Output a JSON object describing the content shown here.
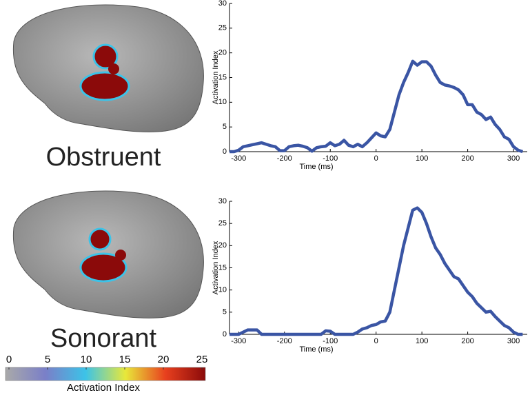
{
  "chart_data": [
    {
      "type": "line",
      "xlabel": "Time (ms)",
      "ylabel": "Activation Index",
      "x": [
        -320,
        -310,
        -300,
        -290,
        -280,
        -270,
        -260,
        -250,
        -240,
        -230,
        -220,
        -210,
        -200,
        -190,
        -180,
        -170,
        -160,
        -150,
        -140,
        -130,
        -120,
        -110,
        -100,
        -90,
        -80,
        -70,
        -60,
        -50,
        -40,
        -30,
        -20,
        -10,
        0,
        10,
        20,
        30,
        40,
        50,
        60,
        70,
        80,
        90,
        100,
        110,
        120,
        130,
        140,
        150,
        160,
        170,
        180,
        190,
        200,
        210,
        220,
        230,
        240,
        250,
        260,
        270,
        280,
        290,
        300,
        310,
        320
      ],
      "series": [
        {
          "name": null,
          "color": "#3a55a4",
          "values": [
            0,
            0,
            0.3,
            1,
            1.2,
            1.4,
            1.6,
            1.8,
            1.5,
            1.2,
            1,
            0.2,
            0.2,
            1,
            1.2,
            1.3,
            1.1,
            0.8,
            0.1,
            0.8,
            1,
            1.1,
            1.8,
            1.2,
            1.5,
            2.3,
            1.3,
            1,
            1.5,
            1,
            1.8,
            2.8,
            3.8,
            3.2,
            3,
            4.5,
            8,
            11.5,
            14,
            16,
            18.3,
            17.5,
            18.2,
            18.2,
            17.3,
            15.5,
            14,
            13.5,
            13.3,
            13,
            12.5,
            11.5,
            9.5,
            9.5,
            8,
            7.5,
            6.5,
            7,
            5.5,
            4.5,
            3,
            2.5,
            1,
            0.3,
            0
          ]
        }
      ],
      "xlim": [
        -320,
        330
      ],
      "xticks": [
        -300,
        -200,
        -100,
        0,
        100,
        200,
        300
      ],
      "ylim": [
        0,
        30
      ],
      "yticks": [
        0,
        5,
        10,
        15,
        20,
        25,
        30
      ]
    },
    {
      "type": "line",
      "xlabel": "Time (ms)",
      "ylabel": "Activation Index",
      "x": [
        -320,
        -310,
        -300,
        -290,
        -280,
        -270,
        -260,
        -250,
        -240,
        -230,
        -220,
        -210,
        -200,
        -190,
        -180,
        -170,
        -160,
        -150,
        -140,
        -130,
        -120,
        -110,
        -100,
        -90,
        -80,
        -70,
        -60,
        -50,
        -40,
        -30,
        -20,
        -10,
        0,
        10,
        20,
        30,
        40,
        50,
        60,
        70,
        80,
        90,
        100,
        110,
        120,
        130,
        140,
        150,
        160,
        170,
        180,
        190,
        200,
        210,
        220,
        230,
        240,
        250,
        260,
        270,
        280,
        290,
        300,
        310,
        320
      ],
      "series": [
        {
          "name": null,
          "color": "#3a55a4",
          "values": [
            0,
            0,
            0,
            0.5,
            1,
            1,
            1,
            0,
            0,
            0,
            0,
            0,
            0,
            0,
            0,
            0,
            0,
            0,
            0,
            0,
            0,
            0.8,
            0.7,
            0,
            0,
            0,
            0,
            0,
            0.5,
            1.2,
            1.5,
            2,
            2.2,
            2.8,
            3,
            5,
            10,
            15,
            20,
            24,
            28,
            28.5,
            27.5,
            25,
            22,
            19.5,
            18,
            16,
            14.5,
            13,
            12.5,
            11,
            9.5,
            8.5,
            7,
            6,
            5,
            5.2,
            4,
            3,
            2,
            1.5,
            0.5,
            0,
            0
          ]
        }
      ],
      "xlim": [
        -320,
        330
      ],
      "xticks": [
        -300,
        -200,
        -100,
        0,
        100,
        200,
        300
      ],
      "ylim": [
        0,
        30
      ],
      "yticks": [
        0,
        5,
        10,
        15,
        20,
        25,
        30
      ]
    }
  ],
  "panels": [
    "Obstruent",
    "Sonorant"
  ],
  "colorbar": {
    "label": "Activation Index",
    "lim": [
      0,
      25
    ],
    "ticks": [
      0,
      5,
      10,
      15,
      20,
      25
    ]
  }
}
